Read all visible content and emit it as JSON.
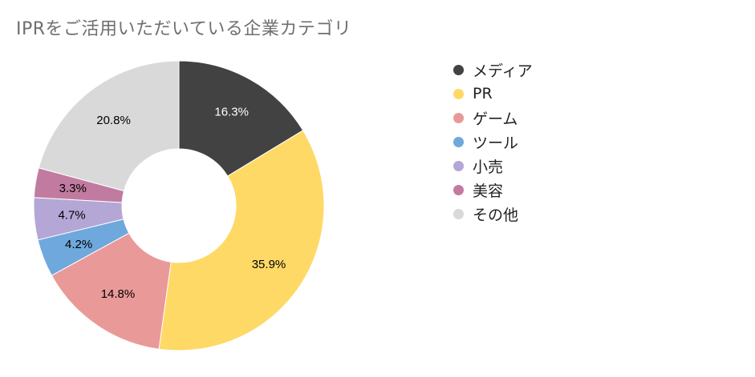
{
  "chart_data": {
    "type": "pie",
    "title": "IPRをご活用いただいている企業カテゴリ",
    "categories": [
      "メディア",
      "PR",
      "ゲーム",
      "ツール",
      "小売",
      "美容",
      "その他"
    ],
    "values": [
      16.3,
      35.9,
      14.8,
      4.2,
      4.7,
      3.3,
      20.8
    ],
    "value_labels": [
      "16.3%",
      "35.9%",
      "14.8%",
      "4.2%",
      "4.7%",
      "3.3%",
      "20.8%"
    ],
    "colors": [
      "#424242",
      "#ffd966",
      "#ea9999",
      "#6fa8dc",
      "#b4a7d6",
      "#c27ba0",
      "#d9d9d9"
    ],
    "label_colors": [
      "#ffffff",
      "#000000",
      "#000000",
      "#000000",
      "#000000",
      "#000000",
      "#000000"
    ],
    "legend_position": "right",
    "donut": true
  }
}
